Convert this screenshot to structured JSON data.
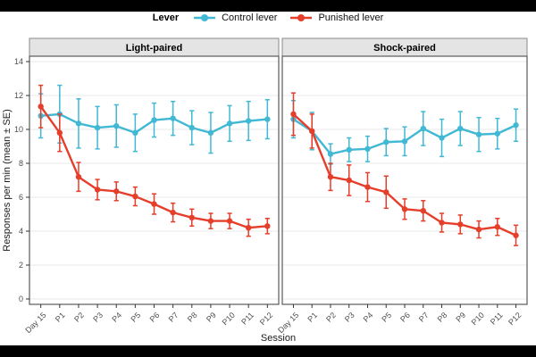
{
  "chart_data": {
    "type": "line",
    "legend": {
      "title": "Lever",
      "entries": [
        {
          "label": "Control lever",
          "color": "#41b8d4"
        },
        {
          "label": "Punished lever",
          "color": "#e53e2a"
        }
      ]
    },
    "xlabel": "Session",
    "ylabel": "Responses per min (mean ± SE)",
    "categories": [
      "Day 15",
      "P1",
      "P2",
      "P3",
      "P4",
      "P5",
      "P6",
      "P7",
      "P8",
      "P9",
      "P10",
      "P11",
      "P12"
    ],
    "yticks": [
      0,
      2,
      4,
      6,
      8,
      10,
      12,
      14
    ],
    "ylim": [
      0,
      14
    ],
    "grid": "horizontal-major-only",
    "error_bars": "mean ± SE",
    "facets": [
      {
        "label": "Light-paired",
        "series": [
          {
            "name": "Control lever",
            "color": "#41b8d4",
            "means": [
              10.8,
              10.9,
              10.35,
              10.1,
              10.2,
              9.8,
              10.55,
              10.65,
              10.1,
              9.8,
              10.35,
              10.5,
              10.6
            ],
            "se": [
              1.3,
              1.7,
              1.45,
              1.25,
              1.25,
              1.1,
              1.0,
              1.0,
              1.0,
              1.2,
              1.05,
              1.15,
              1.15
            ]
          },
          {
            "name": "Punished lever",
            "color": "#e53e2a",
            "means": [
              11.35,
              9.8,
              7.2,
              6.45,
              6.35,
              6.05,
              5.6,
              5.1,
              4.8,
              4.6,
              4.6,
              4.2,
              4.3
            ],
            "se": [
              1.25,
              1.1,
              0.85,
              0.6,
              0.55,
              0.55,
              0.6,
              0.55,
              0.5,
              0.45,
              0.45,
              0.5,
              0.45
            ]
          }
        ]
      },
      {
        "label": "Shock-paired",
        "series": [
          {
            "name": "Control lever",
            "color": "#41b8d4",
            "means": [
              10.6,
              9.9,
              8.55,
              8.8,
              8.85,
              9.25,
              9.3,
              10.05,
              9.5,
              10.05,
              9.7,
              9.75,
              10.25
            ],
            "se": [
              1.1,
              1.1,
              0.6,
              0.7,
              0.75,
              0.8,
              0.85,
              1.0,
              1.1,
              1.0,
              1.0,
              0.9,
              0.95
            ]
          },
          {
            "name": "Punished lever",
            "color": "#e53e2a",
            "means": [
              10.9,
              9.9,
              7.2,
              7.0,
              6.6,
              6.3,
              5.3,
              5.2,
              4.5,
              4.4,
              4.1,
              4.25,
              3.75
            ],
            "se": [
              1.25,
              1.0,
              0.8,
              0.9,
              0.85,
              0.95,
              0.6,
              0.6,
              0.55,
              0.55,
              0.5,
              0.5,
              0.6
            ]
          }
        ]
      }
    ]
  }
}
